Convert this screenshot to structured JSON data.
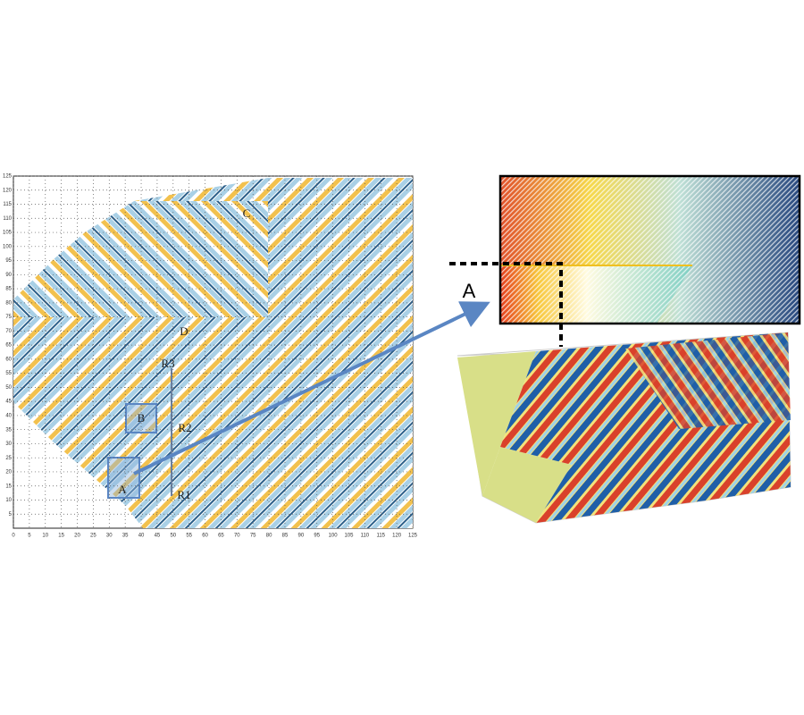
{
  "left_plot": {
    "x_ticks": [
      0,
      5,
      10,
      15,
      20,
      25,
      30,
      35,
      40,
      45,
      50,
      55,
      60,
      65,
      70,
      75,
      80,
      85,
      90,
      95,
      100,
      105,
      110,
      115,
      120,
      125
    ],
    "y_ticks": [
      5,
      10,
      15,
      20,
      25,
      30,
      35,
      40,
      45,
      50,
      55,
      60,
      65,
      70,
      75,
      80,
      85,
      90,
      95,
      100,
      105,
      110,
      115,
      120,
      125
    ],
    "region_labels": [
      "A",
      "B",
      "C",
      "D",
      "R1",
      "R2",
      "R3"
    ]
  },
  "inset": {
    "label": "A"
  }
}
